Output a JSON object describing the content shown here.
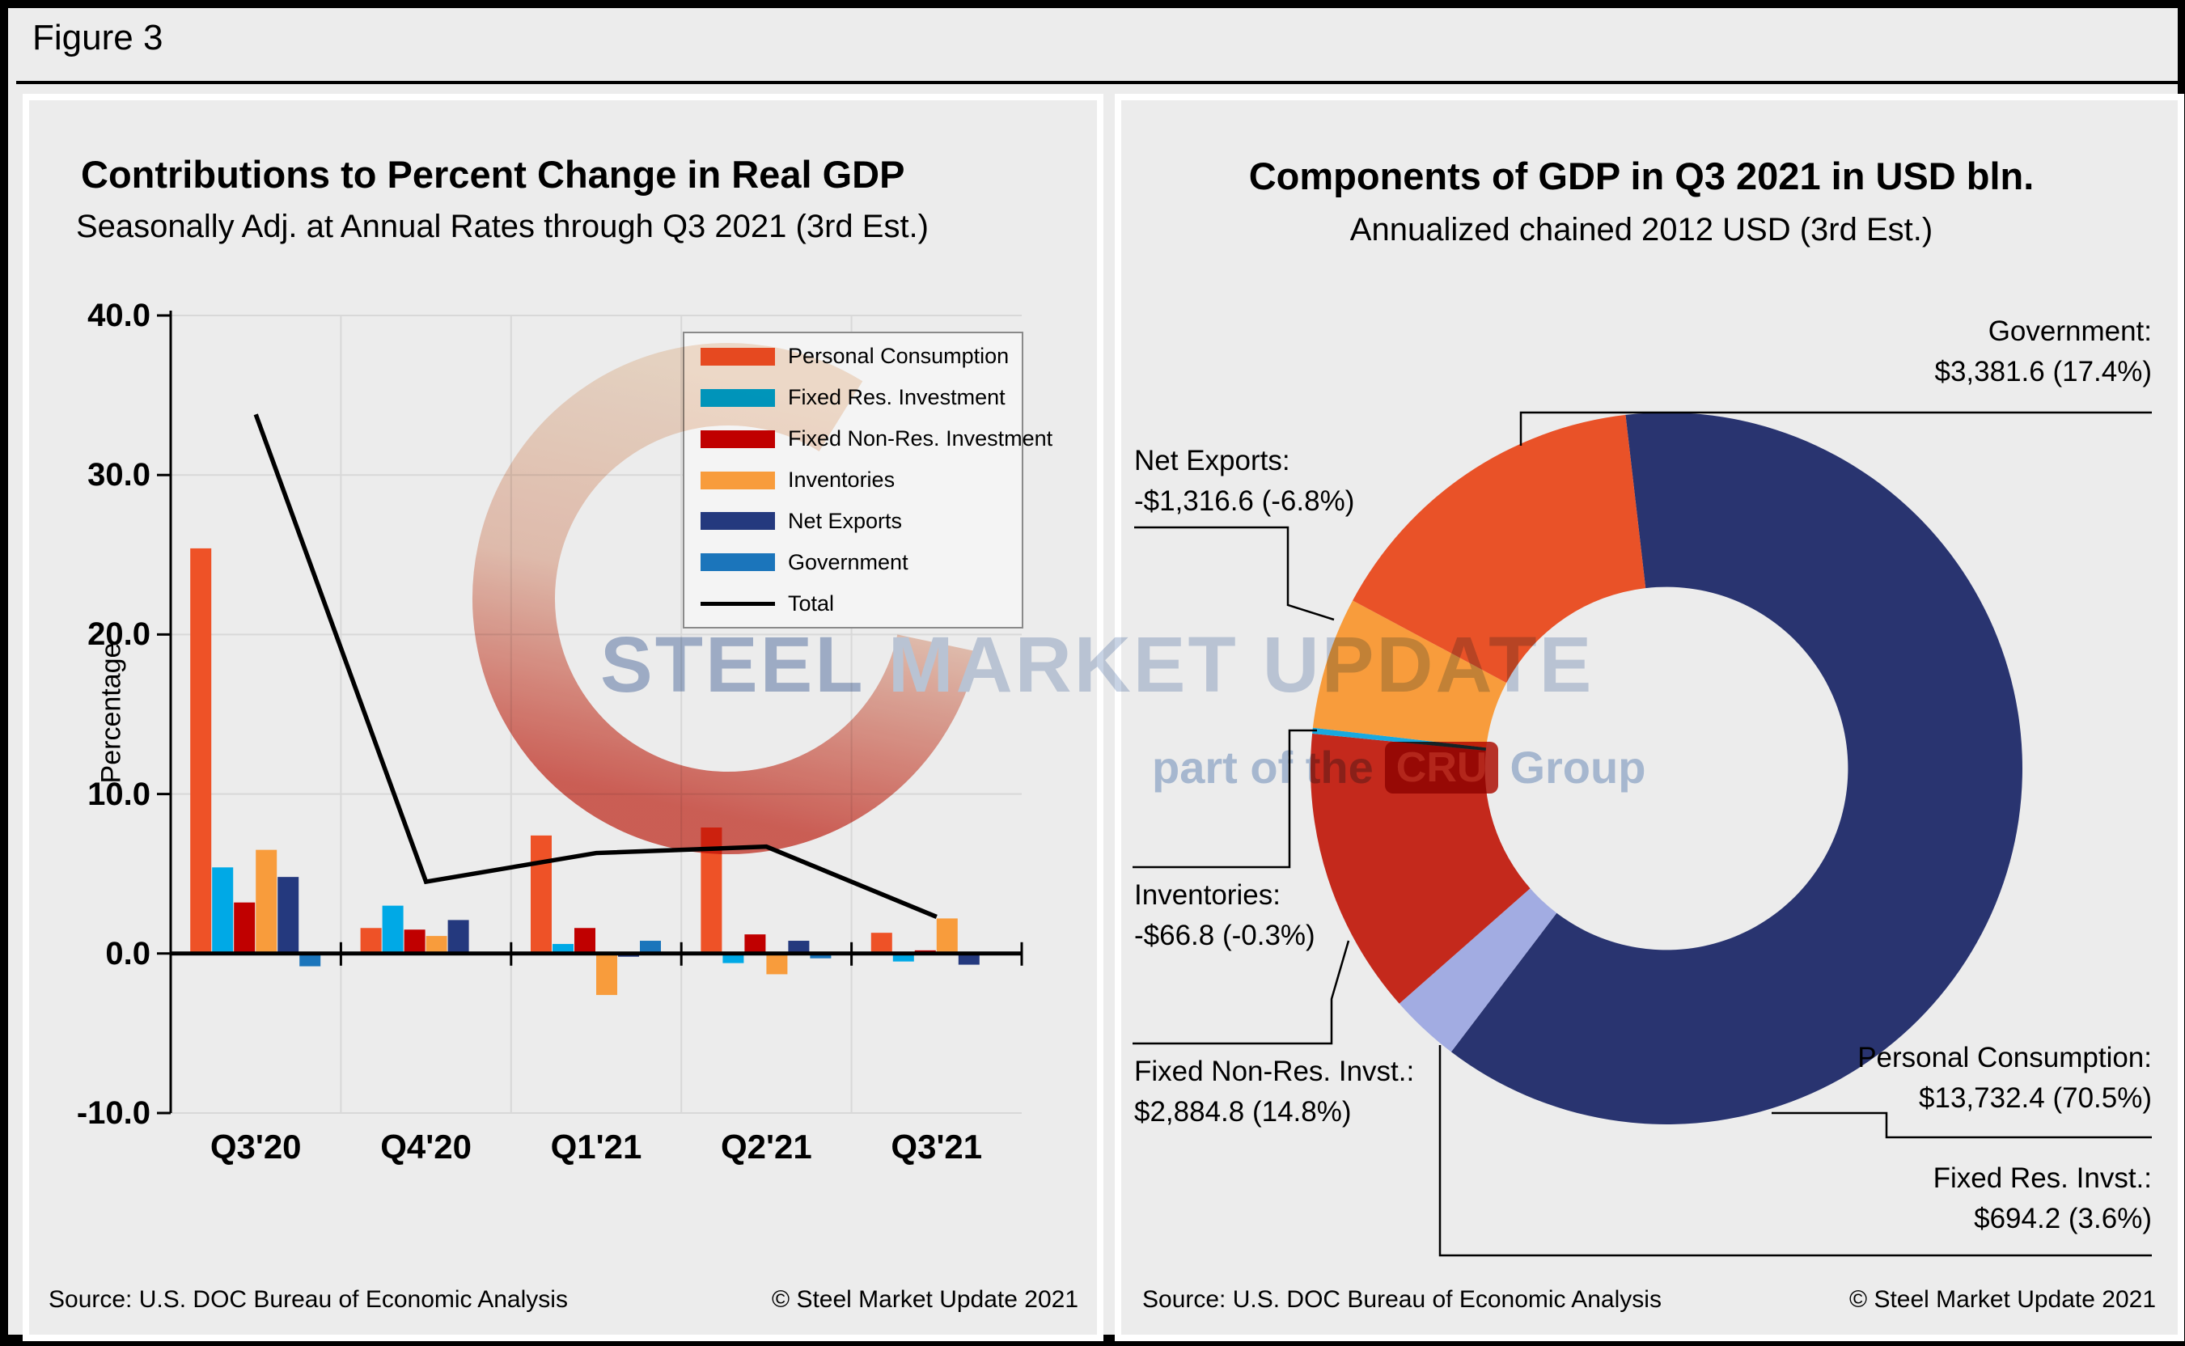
{
  "figure": {
    "label": "Figure 3"
  },
  "chart_data": [
    {
      "type": "bar",
      "title": "Contributions to Percent Change in Real GDP",
      "subtitle": "Seasonally Adj. at Annual Rates through Q3 2021 (3rd Est.)",
      "ylabel": "Percentage",
      "ylim": [
        -10,
        40
      ],
      "y_ticks": [
        "40.0",
        "30.0",
        "20.0",
        "10.0",
        "0.0",
        "-10.0"
      ],
      "y_tick_values": [
        40,
        30,
        20,
        10,
        0,
        -10
      ],
      "grid": true,
      "legend_position": "top-right",
      "categories": [
        "Q3'20",
        "Q4'20",
        "Q1'21",
        "Q2'21",
        "Q3'21"
      ],
      "series": [
        {
          "name": "Personal Consumption",
          "color": "#EE5227",
          "values": [
            25.4,
            1.6,
            7.4,
            7.9,
            1.3
          ]
        },
        {
          "name": "Fixed Res. Investment",
          "color": "#00A9E6",
          "values": [
            5.4,
            3.0,
            0.6,
            -0.6,
            -0.5
          ]
        },
        {
          "name": "Fixed Non-Res. Investment",
          "color": "#C00000",
          "values": [
            3.2,
            1.5,
            1.6,
            1.2,
            0.2
          ]
        },
        {
          "name": "Inventories",
          "color": "#F89C3C",
          "values": [
            6.5,
            1.1,
            -2.6,
            -1.3,
            2.2
          ]
        },
        {
          "name": "Net Exports",
          "color": "#24397E",
          "values": [
            4.8,
            2.1,
            -0.2,
            0.8,
            -0.7
          ]
        },
        {
          "name": "Government",
          "color": "#1B75BB",
          "values": [
            -0.8,
            -0.1,
            0.8,
            -0.3,
            0.1
          ]
        }
      ],
      "line_series": {
        "name": "Total",
        "color": "#000000",
        "values": [
          33.8,
          4.5,
          6.3,
          6.7,
          2.3
        ]
      },
      "source": "Source: U.S. DOC Bureau of Economic Analysis",
      "copyright": "© Steel Market Update 2021"
    },
    {
      "type": "pie",
      "title": "Components of GDP in Q3 2021 in USD bln.",
      "subtitle": "Annualized chained 2012 USD (3rd Est.)",
      "donut_hole_ratio": 0.51,
      "start_angle_deg": -6.6,
      "slices": [
        {
          "name": "Personal Consumption",
          "amount": "$13,732.4",
          "pct": "(70.5%)",
          "share": 70.5,
          "color": "#293470"
        },
        {
          "name": "Fixed Res. Invst.",
          "amount": "$694.2",
          "pct": "(3.6%)",
          "share": 3.6,
          "color": "#A2ACE2"
        },
        {
          "name": "Fixed Non-Res. Invst.",
          "amount": "$2,884.8",
          "pct": "(14.8%)",
          "share": 14.8,
          "color": "#C4291C"
        },
        {
          "name": "Inventories",
          "amount": "-$66.8",
          "pct": "(-0.3%)",
          "share": 0.3,
          "color": "#18A9E0"
        },
        {
          "name": "Net Exports",
          "amount": "-$1,316.6",
          "pct": "(-6.8%)",
          "share": 6.8,
          "color": "#F89C3C"
        },
        {
          "name": "Government",
          "amount": "$3,381.6",
          "pct": "(17.4%)",
          "share": 17.4,
          "color": "#E95228"
        }
      ],
      "source": "Source: U.S. DOC Bureau of Economic Analysis",
      "copyright": "© Steel Market Update 2021"
    }
  ],
  "legend": {
    "total_label": "Total"
  },
  "watermark": {
    "word1": "STEEL",
    "word2": " MARKET UPDATE",
    "part_of": "part of the",
    "cru": "CRU",
    "group": "Group"
  }
}
